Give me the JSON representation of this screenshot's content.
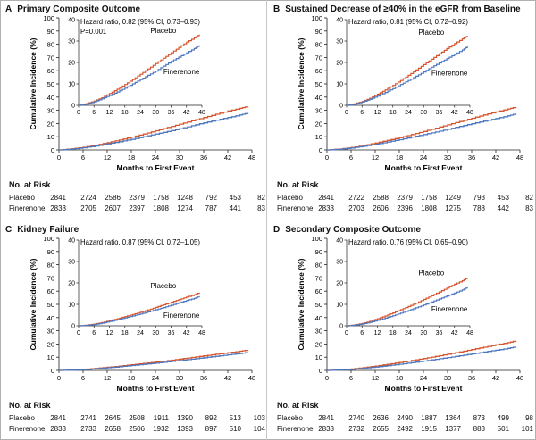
{
  "colors": {
    "placebo": "#d8542c",
    "finerenone": "#4d78c0",
    "axis": "#222222"
  },
  "panels": [
    {
      "letter": "A",
      "title": "Primary Composite Outcome",
      "hr_line1": "Hazard ratio, 0.82 (95% CI, 0.73–0.93)",
      "hr_line2": "P=0.001",
      "risk": {
        "header": "No. at Risk",
        "placebo_label": "Placebo",
        "finerenone_label": "Finerenone",
        "placebo": [
          "2841",
          "2724",
          "2586",
          "2379",
          "1758",
          "1248",
          "792",
          "453",
          "82"
        ],
        "finerenone": [
          "2833",
          "2705",
          "2607",
          "2397",
          "1808",
          "1274",
          "787",
          "441",
          "83"
        ]
      }
    },
    {
      "letter": "B",
      "title": "Sustained Decrease of ≥40% in the eGFR from Baseline",
      "hr_line1": "Hazard ratio, 0.81 (95% CI, 0.72–0.92)",
      "hr_line2": "",
      "risk": {
        "header": "No. at Risk",
        "placebo_label": "Placebo",
        "finerenone_label": "Finerenone",
        "placebo": [
          "2841",
          "2722",
          "2588",
          "2379",
          "1758",
          "1249",
          "793",
          "453",
          "82"
        ],
        "finerenone": [
          "2833",
          "2703",
          "2606",
          "2396",
          "1808",
          "1275",
          "788",
          "442",
          "83"
        ]
      }
    },
    {
      "letter": "C",
      "title": "Kidney Failure",
      "hr_line1": "Hazard ratio, 0.87 (95% CI, 0.72–1.05)",
      "hr_line2": "",
      "risk": {
        "header": "No. at Risk",
        "placebo_label": "Placebo",
        "finerenone_label": "Finerenone",
        "placebo": [
          "2841",
          "2741",
          "2645",
          "2508",
          "1911",
          "1390",
          "892",
          "513",
          "103"
        ],
        "finerenone": [
          "2833",
          "2733",
          "2658",
          "2506",
          "1932",
          "1393",
          "897",
          "510",
          "104"
        ]
      }
    },
    {
      "letter": "D",
      "title": "Secondary Composite Outcome",
      "hr_line1": "Hazard ratio, 0.76 (95% CI, 0.65–0.90)",
      "hr_line2": "",
      "risk": {
        "header": "No. at Risk",
        "placebo_label": "Placebo",
        "finerenone_label": "Finerenone",
        "placebo": [
          "2841",
          "2740",
          "2636",
          "2490",
          "1887",
          "1364",
          "873",
          "499",
          "98"
        ],
        "finerenone": [
          "2833",
          "2732",
          "2655",
          "2492",
          "1915",
          "1377",
          "883",
          "501",
          "101"
        ]
      }
    }
  ],
  "chart_data": [
    {
      "type": "line",
      "panel": "A",
      "title": "Primary Composite Outcome",
      "xlabel": "Months to First Event",
      "ylabel": "Cumulative Incidence (%)",
      "xlim": [
        0,
        48
      ],
      "ylim": [
        0,
        100
      ],
      "xticks": [
        "0",
        "6",
        "12",
        "18",
        "24",
        "30",
        "36",
        "42",
        "48"
      ],
      "yticks": [
        "0",
        "10",
        "20",
        "30",
        "40",
        "50",
        "60",
        "70",
        "80",
        "90",
        "100"
      ],
      "inset": {
        "xlim": [
          0,
          48
        ],
        "ylim": [
          0,
          40
        ],
        "xticks": [
          "0",
          "6",
          "12",
          "18",
          "24",
          "30",
          "36",
          "42",
          "48"
        ],
        "yticks": [
          "0",
          "10",
          "20",
          "30",
          "40"
        ],
        "placebo_label": "Placebo",
        "finerenone_label": "Finerenone"
      },
      "series": [
        {
          "name": "Placebo",
          "x": [
            0,
            3,
            6,
            9,
            12,
            15,
            18,
            21,
            24,
            27,
            30,
            33,
            36,
            39,
            42,
            45,
            47
          ],
          "y": [
            0,
            0.8,
            2,
            3.5,
            5.5,
            7.5,
            9.7,
            12,
            14.5,
            17,
            19.5,
            22,
            24.5,
            27,
            29.5,
            31.5,
            33
          ]
        },
        {
          "name": "Finerenone",
          "x": [
            0,
            3,
            6,
            9,
            12,
            15,
            18,
            21,
            24,
            27,
            30,
            33,
            36,
            39,
            42,
            45,
            47
          ],
          "y": [
            0,
            0.6,
            1.6,
            3,
            4.6,
            6.2,
            8,
            10,
            12,
            14,
            16,
            18.3,
            20.5,
            22.5,
            24.5,
            26.5,
            28
          ]
        }
      ]
    },
    {
      "type": "line",
      "panel": "B",
      "title": "Sustained Decrease of ≥40% in the eGFR from Baseline",
      "xlabel": "Months to First Event",
      "ylabel": "Cumulative Incidence (%)",
      "xlim": [
        0,
        48
      ],
      "ylim": [
        0,
        100
      ],
      "xticks": [
        "0",
        "6",
        "12",
        "18",
        "24",
        "30",
        "36",
        "42",
        "48"
      ],
      "yticks": [
        "0",
        "10",
        "20",
        "30",
        "40",
        "50",
        "60",
        "70",
        "80",
        "90",
        "100"
      ],
      "inset": {
        "xlim": [
          0,
          48
        ],
        "ylim": [
          0,
          40
        ],
        "xticks": [
          "0",
          "6",
          "12",
          "18",
          "24",
          "30",
          "36",
          "42",
          "48"
        ],
        "yticks": [
          "0",
          "10",
          "20",
          "30",
          "40"
        ],
        "placebo_label": "Placebo",
        "finerenone_label": "Finerenone"
      },
      "series": [
        {
          "name": "Placebo",
          "x": [
            0,
            3,
            6,
            9,
            12,
            15,
            18,
            21,
            24,
            27,
            30,
            33,
            36,
            39,
            42,
            45,
            47
          ],
          "y": [
            0,
            0.7,
            1.8,
            3.3,
            5.2,
            7.2,
            9.3,
            11.6,
            14,
            16.5,
            19,
            21.5,
            24,
            26.5,
            28.8,
            31,
            32.5
          ]
        },
        {
          "name": "Finerenone",
          "x": [
            0,
            3,
            6,
            9,
            12,
            15,
            18,
            21,
            24,
            27,
            30,
            33,
            36,
            39,
            42,
            45,
            47
          ],
          "y": [
            0,
            0.5,
            1.5,
            2.8,
            4.3,
            6,
            7.8,
            9.7,
            11.6,
            13.6,
            15.6,
            17.8,
            19.8,
            21.8,
            23.8,
            25.8,
            27.5
          ]
        }
      ]
    },
    {
      "type": "line",
      "panel": "C",
      "title": "Kidney Failure",
      "xlabel": "Months to First Event",
      "ylabel": "Cumulative Incidence (%)",
      "xlim": [
        0,
        48
      ],
      "ylim": [
        0,
        100
      ],
      "xticks": [
        "0",
        "6",
        "12",
        "18",
        "24",
        "30",
        "36",
        "42",
        "48"
      ],
      "yticks": [
        "0",
        "10",
        "20",
        "30",
        "40",
        "50",
        "60",
        "70",
        "80",
        "90",
        "100"
      ],
      "inset": {
        "xlim": [
          0,
          48
        ],
        "ylim": [
          0,
          40
        ],
        "xticks": [
          "0",
          "6",
          "12",
          "18",
          "24",
          "30",
          "36",
          "42",
          "48"
        ],
        "yticks": [
          "0",
          "10",
          "20",
          "30",
          "40"
        ],
        "placebo_label": "Placebo",
        "finerenone_label": "Finerenone"
      },
      "series": [
        {
          "name": "Placebo",
          "x": [
            0,
            3,
            6,
            9,
            12,
            15,
            18,
            21,
            24,
            27,
            30,
            33,
            36,
            39,
            42,
            45,
            47
          ],
          "y": [
            0,
            0.3,
            0.8,
            1.5,
            2.4,
            3.3,
            4.3,
            5.3,
            6.3,
            7.4,
            8.6,
            9.8,
            11,
            12.2,
            13.4,
            14.5,
            15.5
          ]
        },
        {
          "name": "Finerenone",
          "x": [
            0,
            3,
            6,
            9,
            12,
            15,
            18,
            21,
            24,
            27,
            30,
            33,
            36,
            39,
            42,
            45,
            47
          ],
          "y": [
            0,
            0.2,
            0.6,
            1.2,
            2,
            2.8,
            3.7,
            4.6,
            5.5,
            6.5,
            7.5,
            8.5,
            9.6,
            10.7,
            11.8,
            12.8,
            13.8
          ]
        }
      ]
    },
    {
      "type": "line",
      "panel": "D",
      "title": "Secondary Composite Outcome",
      "xlabel": "Months to First Event",
      "ylabel": "Cumulative Incidence (%)",
      "xlim": [
        0,
        48
      ],
      "ylim": [
        0,
        100
      ],
      "xticks": [
        "0",
        "6",
        "12",
        "18",
        "24",
        "30",
        "36",
        "42",
        "48"
      ],
      "yticks": [
        "0",
        "10",
        "20",
        "30",
        "40",
        "50",
        "60",
        "70",
        "80",
        "90",
        "100"
      ],
      "inset": {
        "xlim": [
          0,
          48
        ],
        "ylim": [
          0,
          40
        ],
        "xticks": [
          "0",
          "6",
          "12",
          "18",
          "24",
          "30",
          "36",
          "42",
          "48"
        ],
        "yticks": [
          "0",
          "10",
          "20",
          "30",
          "40"
        ],
        "placebo_label": "Placebo",
        "finerenone_label": "Finerenone"
      },
      "series": [
        {
          "name": "Placebo",
          "x": [
            0,
            3,
            6,
            9,
            12,
            15,
            18,
            21,
            24,
            27,
            30,
            33,
            36,
            39,
            42,
            45,
            47
          ],
          "y": [
            0,
            0.4,
            1.1,
            2.1,
            3.3,
            4.6,
            6,
            7.5,
            9,
            10.6,
            12.3,
            14,
            15.8,
            17.6,
            19.4,
            21,
            22.5
          ]
        },
        {
          "name": "Finerenone",
          "x": [
            0,
            3,
            6,
            9,
            12,
            15,
            18,
            21,
            24,
            27,
            30,
            33,
            36,
            39,
            42,
            45,
            47
          ],
          "y": [
            0,
            0.3,
            0.8,
            1.6,
            2.6,
            3.6,
            4.7,
            5.9,
            7.1,
            8.4,
            9.7,
            11.1,
            12.5,
            13.9,
            15.3,
            16.7,
            18
          ]
        }
      ]
    }
  ]
}
